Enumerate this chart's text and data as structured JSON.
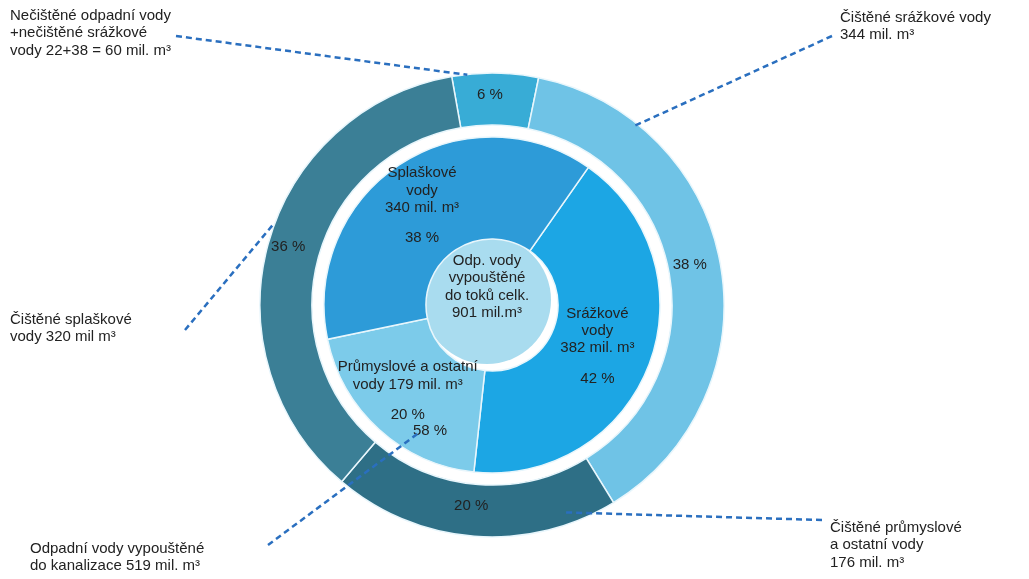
{
  "chart_data": [
    {
      "type": "donut",
      "categories": [
        "Nečištěné odpadní vody\n+nečištěné srážkové\nvody 22+38 = 60 mil. m³",
        "Čištěné srážkové vody\n344 mil. m³",
        "Čištěné průmyslové\na ostatní vody\n176 mil. m³",
        "Čištěné splaškové\nvody  320 mil m³"
      ],
      "values": [
        6,
        38,
        20,
        36
      ],
      "value_labels": [
        "6 %",
        "38 %",
        "20 %",
        "36 %"
      ],
      "colors": [
        "#38acd6",
        "#6fc3e6",
        "#2e6f86",
        "#3b7f96"
      ]
    },
    {
      "type": "donut",
      "categories": [
        "Srážkové\nvody\n382 mil. m³",
        "Průmyslové a ostatní\nvody 179 mil. m³",
        "Splaškové\nvody\n340 mil. m³"
      ],
      "values": [
        42,
        20,
        38
      ],
      "value_labels": [
        "42 %",
        "20 %",
        "38 %"
      ],
      "colors": [
        "#1ca6e4",
        "#7ccbea",
        "#2d9bd8"
      ],
      "annotations": [
        "Odp. vody\nvypouštěné\ndo toků celk.\n901 mil.m³",
        "58 %",
        "Odpadní vody vypouštěné\ndo kanalizace 519 mil. m³"
      ]
    }
  ]
}
